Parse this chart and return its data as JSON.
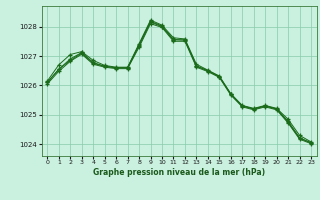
{
  "title": "Graphe pression niveau de la mer (hPa)",
  "bg_color": "#caf0e0",
  "grid_color": "#88ccaa",
  "line_color": "#1a6b1a",
  "marker_color": "#1a6b1a",
  "xlim": [
    -0.5,
    23.5
  ],
  "ylim": [
    1023.6,
    1028.7
  ],
  "yticks": [
    1024,
    1025,
    1026,
    1027,
    1028
  ],
  "xticks": [
    0,
    1,
    2,
    3,
    4,
    5,
    6,
    7,
    8,
    9,
    10,
    11,
    12,
    13,
    14,
    15,
    16,
    17,
    18,
    19,
    20,
    21,
    22,
    23
  ],
  "series": [
    [
      1026.1,
      1026.55,
      1026.85,
      1027.1,
      1026.75,
      1026.65,
      1026.6,
      1026.6,
      1027.35,
      1028.15,
      1028.0,
      1027.55,
      1027.55,
      1026.65,
      1026.5,
      1026.3,
      1025.7,
      1025.3,
      1025.2,
      1025.3,
      1025.2,
      1024.75,
      1024.2,
      1024.05
    ],
    [
      1026.15,
      1026.7,
      1027.05,
      1027.15,
      1026.85,
      1026.68,
      1026.62,
      1026.62,
      1027.42,
      1028.22,
      1028.05,
      1027.62,
      1027.58,
      1026.72,
      1026.52,
      1026.32,
      1025.72,
      1025.32,
      1025.22,
      1025.32,
      1025.22,
      1024.85,
      1024.3,
      1024.08
    ],
    [
      1026.05,
      1026.48,
      1026.82,
      1027.06,
      1026.72,
      1026.62,
      1026.57,
      1026.57,
      1027.3,
      1028.1,
      1027.97,
      1027.5,
      1027.5,
      1026.62,
      1026.47,
      1026.27,
      1025.67,
      1025.27,
      1025.17,
      1025.27,
      1025.17,
      1024.72,
      1024.17,
      1024.02
    ],
    [
      1026.1,
      1026.55,
      1026.9,
      1027.12,
      1026.78,
      1026.65,
      1026.6,
      1026.6,
      1027.38,
      1028.18,
      1028.02,
      1027.56,
      1027.54,
      1026.67,
      1026.5,
      1026.3,
      1025.7,
      1025.3,
      1025.2,
      1025.3,
      1025.2,
      1024.78,
      1024.22,
      1024.05
    ]
  ]
}
